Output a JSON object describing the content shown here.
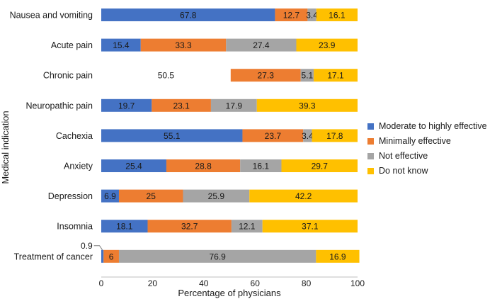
{
  "chart_data": {
    "type": "bar",
    "orientation": "horizontal",
    "stacked": true,
    "categories": [
      "Nausea and vomiting",
      "Acute pain",
      "Chronic pain",
      "Neuropathic pain",
      "Cachexia",
      "Anxiety",
      "Depression",
      "Insomnia",
      "Treatment of cancer"
    ],
    "series": [
      {
        "name": "Moderate to highly effective",
        "color": "#4472C4",
        "values": [
          67.8,
          15.4,
          50.5,
          19.7,
          55.1,
          25.4,
          6.9,
          18.1,
          0.9
        ]
      },
      {
        "name": "Minimally effective",
        "color": "#ED7D31",
        "values": [
          12.7,
          33.3,
          27.3,
          23.1,
          23.7,
          28.8,
          25,
          32.7,
          6
        ]
      },
      {
        "name": "Not effective",
        "color": "#A5A5A5",
        "values": [
          3.4,
          27.4,
          5.1,
          17.9,
          3.4,
          16.1,
          25.9,
          12.1,
          76.9
        ]
      },
      {
        "name": "Do not know",
        "color": "#FFC000",
        "values": [
          16.1,
          23.9,
          17.1,
          39.3,
          17.8,
          29.7,
          42.2,
          37.1,
          16.9
        ]
      }
    ],
    "xlabel": "Percentage of physicians",
    "ylabel": "Medical indication",
    "xlim": [
      0,
      100
    ],
    "xticks": [
      "0",
      "20",
      "40",
      "60",
      "80",
      "100"
    ],
    "grid": false,
    "legend_position": "right"
  }
}
